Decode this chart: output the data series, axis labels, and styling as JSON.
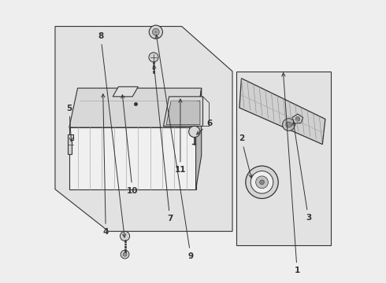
{
  "bg_color": "#eeeeee",
  "line_color": "#333333",
  "fill_light": "#e8e8e8",
  "fill_mid": "#d4d4d4",
  "fill_dark": "#b8b8b8",
  "fill_white": "#f5f5f5"
}
